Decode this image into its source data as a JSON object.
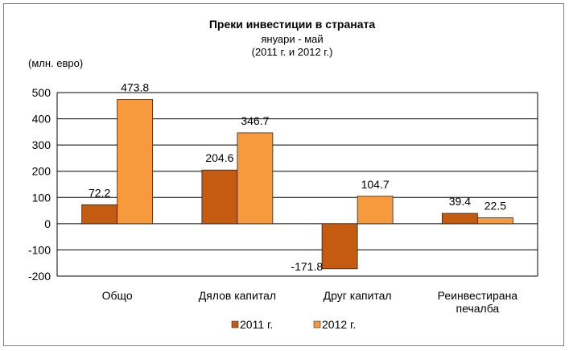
{
  "chart_data": {
    "type": "bar",
    "title": "Преки инвестиции  в страната",
    "subtitle_line1": "януари - май",
    "subtitle_line2": "(2011 г. и 2012 г.)",
    "ylabel": "(млн. евро)",
    "ylim": [
      -200,
      500
    ],
    "yticks": [
      500,
      400,
      300,
      200,
      100,
      0,
      -100,
      -200
    ],
    "grid": true,
    "legend_position": "bottom",
    "categories": [
      [
        "Общо"
      ],
      [
        "Дялов капитал"
      ],
      [
        "Друг капитал"
      ],
      [
        "Реинвестирана",
        "печалба"
      ]
    ],
    "series": [
      {
        "name": "2011 г.",
        "color": "#C55A11",
        "values": [
          72.2,
          204.6,
          -171.8,
          39.4
        ],
        "labels": [
          "72.2",
          "204.6",
          "-171.8",
          "39.4"
        ]
      },
      {
        "name": "2012 г.",
        "color": "#F79A3E",
        "values": [
          473.8,
          346.7,
          104.7,
          22.5
        ],
        "labels": [
          "473.8",
          "346.7",
          "104.7",
          "22.5"
        ]
      }
    ]
  }
}
